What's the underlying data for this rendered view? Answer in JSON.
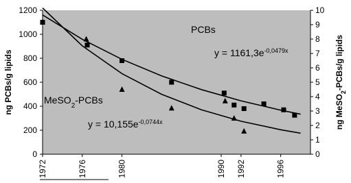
{
  "chart_data": {
    "type": "scatter",
    "ylabel": "ng PCBs/g lipids",
    "y2label_parts": [
      "ng MeSO",
      "2",
      "-PCBs/g lipids"
    ],
    "xlim": [
      1972,
      1999
    ],
    "ylim": [
      0,
      1200
    ],
    "y2lim": [
      0,
      10
    ],
    "xticks": [
      1972,
      1976,
      1980,
      1990,
      1992,
      1996
    ],
    "yticks": [
      0,
      200,
      400,
      600,
      800,
      1000,
      1200
    ],
    "y2ticks": [
      0,
      1,
      2,
      3,
      4,
      5,
      6,
      7,
      8,
      9,
      10
    ],
    "background": "#bdbdbd",
    "series": [
      {
        "marker": "square",
        "color": "#000000",
        "x": [
          1972,
          1976.5,
          1980,
          1985,
          1990.3,
          1991.3,
          1992.3,
          1994.3,
          1996.3,
          1997.4
        ],
        "values": [
          1100,
          910,
          780,
          600,
          510,
          410,
          380,
          420,
          370,
          325
        ]
      },
      {
        "marker": "triangle",
        "color": "#000000",
        "axis": "y2",
        "x": [
          1972,
          1976.4,
          1980,
          1985,
          1990.4,
          1991.3,
          1992.3
        ],
        "values": [
          9.2,
          8.0,
          4.5,
          3.2,
          3.7,
          2.5,
          1.6
        ]
      },
      {
        "marker": "none",
        "line": true,
        "color": "#000000",
        "x": [
          1972,
          1976,
          1980,
          1984,
          1988,
          1992,
          1996,
          1998
        ],
        "values": [
          1161,
          958,
          791,
          653,
          539,
          445,
          367,
          334
        ]
      },
      {
        "marker": "none",
        "line": true,
        "color": "#000000",
        "axis": "y2",
        "x": [
          1972,
          1976,
          1980,
          1984,
          1988,
          1992,
          1996,
          1998
        ],
        "values": [
          10.16,
          7.53,
          5.6,
          4.16,
          3.09,
          2.29,
          1.7,
          1.46
        ]
      }
    ],
    "annotations": [
      {
        "parts": [
          "PCBs"
        ]
      },
      {
        "parts": [
          "y = 1161,3e",
          "-0,0479x"
        ]
      },
      {
        "parts": [
          "MeSO",
          "2",
          "-PCBs"
        ]
      },
      {
        "parts": [
          "y = 10,155e",
          "-0,0744x"
        ]
      }
    ]
  }
}
